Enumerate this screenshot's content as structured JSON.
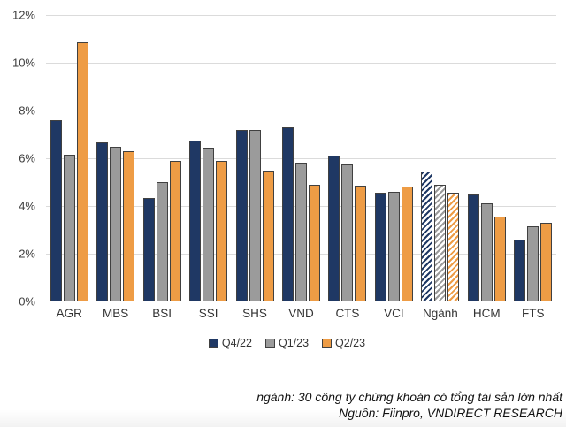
{
  "chart_data": {
    "type": "bar",
    "title": "",
    "xlabel": "",
    "ylabel": "",
    "categories": [
      "AGR",
      "MBS",
      "BSI",
      "SSI",
      "SHS",
      "VND",
      "CTS",
      "VCI",
      "Ngành",
      "HCM",
      "FTS"
    ],
    "series": [
      {
        "name": "Q4/22",
        "color": "#1F3864",
        "values": [
          7.6,
          6.65,
          4.35,
          6.75,
          7.2,
          7.3,
          6.1,
          4.55,
          5.45,
          4.5,
          2.6
        ]
      },
      {
        "name": "Q1/23",
        "color": "#9B9B9B",
        "values": [
          6.15,
          6.5,
          5.0,
          6.45,
          7.2,
          5.8,
          5.75,
          4.6,
          4.9,
          4.1,
          3.15
        ]
      },
      {
        "name": "Q2/23",
        "color": "#EE9C45",
        "values": [
          10.85,
          6.3,
          5.9,
          5.9,
          5.5,
          4.9,
          4.85,
          4.8,
          4.55,
          3.55,
          3.3
        ]
      }
    ],
    "hatched_category": "Ngành",
    "ylim": [
      0,
      12
    ],
    "yticks": [
      0,
      2,
      4,
      6,
      8,
      10,
      12
    ],
    "ytick_suffix": "%",
    "grid": true,
    "gridline_color": "#dbdbdb",
    "bar_border_color": "#404040",
    "legend_position": "bottom-center",
    "footnotes": [
      "ngành: 30 công ty chứng khoán có tổng tài sản lớn nhất",
      "Nguồn: Fiinpro, VNDIRECT RESEARCH"
    ]
  }
}
